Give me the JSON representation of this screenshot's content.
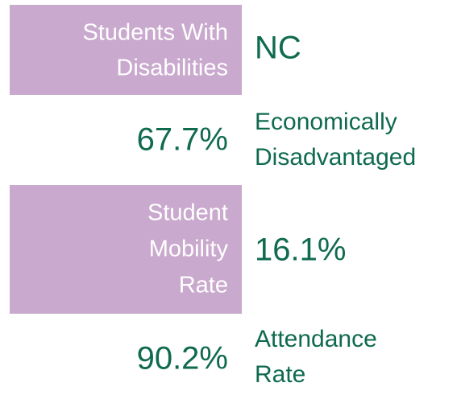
{
  "items": [
    {
      "label": [
        "Students With",
        "Disabilities"
      ],
      "value": [
        "NC"
      ]
    },
    {
      "label": [
        "67.7%"
      ],
      "value": [
        "Economically",
        "Disadvantaged"
      ]
    },
    {
      "label": [
        "Student",
        "Mobility",
        "Rate"
      ],
      "value": [
        "16.1%"
      ]
    },
    {
      "label": [
        "90.2%"
      ],
      "value": [
        "Attendance",
        "Rate"
      ]
    }
  ]
}
